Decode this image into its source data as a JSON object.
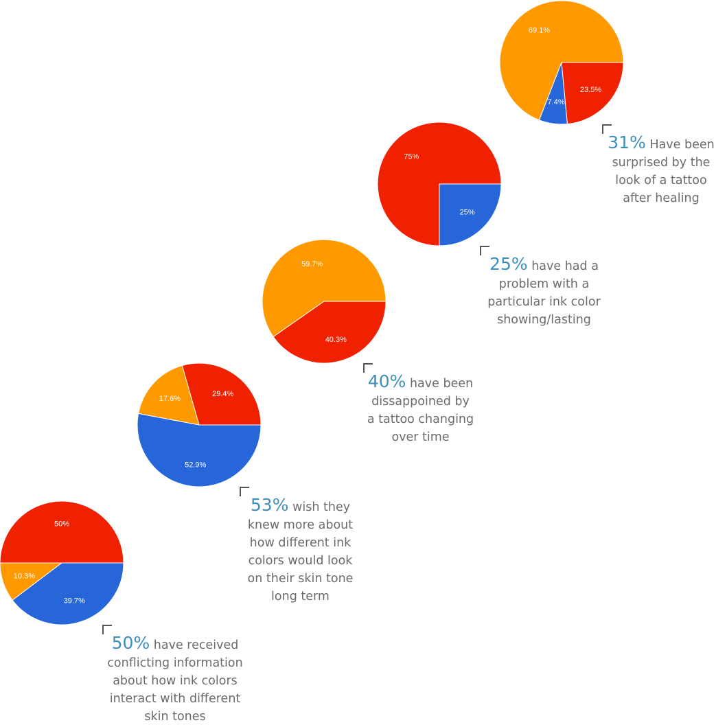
{
  "colors": {
    "orange": "#ff9900",
    "red": "#f02100",
    "blue": "#2666d9",
    "accent": "#3d8fbd",
    "text": "#6b6b6b"
  },
  "chart_data": [
    {
      "type": "pie",
      "slices": [
        {
          "label": "50%",
          "value": 50,
          "color": "#f02100"
        },
        {
          "label": "10.3%",
          "value": 10.3,
          "color": "#ff9900"
        },
        {
          "label": "39.7%",
          "value": 39.7,
          "color": "#2666d9"
        }
      ]
    },
    {
      "type": "pie",
      "slices": [
        {
          "label": "29.4%",
          "value": 29.4,
          "color": "#f02100"
        },
        {
          "label": "17.6%",
          "value": 17.6,
          "color": "#ff9900"
        },
        {
          "label": "52.9%",
          "value": 52.9,
          "color": "#2666d9"
        }
      ]
    },
    {
      "type": "pie",
      "slices": [
        {
          "label": "59.7%",
          "value": 59.7,
          "color": "#ff9900"
        },
        {
          "label": "40.3%",
          "value": 40.3,
          "color": "#f02100"
        }
      ]
    },
    {
      "type": "pie",
      "slices": [
        {
          "label": "75%",
          "value": 75,
          "color": "#f02100"
        },
        {
          "label": "25%",
          "value": 25,
          "color": "#2666d9"
        }
      ]
    },
    {
      "type": "pie",
      "slices": [
        {
          "label": "69.1%",
          "value": 69.1,
          "color": "#ff9900"
        },
        {
          "label": "7.4%",
          "value": 7.4,
          "color": "#2666d9"
        },
        {
          "label": "23.5%",
          "value": 23.5,
          "color": "#f02100"
        }
      ]
    }
  ],
  "captions": [
    {
      "pct": "50%",
      "first": " have received",
      "rest": [
        "conflicting information",
        "about how ink colors",
        "interact with different",
        "skin tones"
      ]
    },
    {
      "pct": "53%",
      "first": " wish they",
      "rest": [
        "knew more about",
        "how different ink",
        "colors would look",
        "on their skin tone",
        "long term"
      ]
    },
    {
      "pct": "40%",
      "first": " have been",
      "rest": [
        "dissappoined by",
        "a tattoo changing",
        "over time"
      ]
    },
    {
      "pct": "25%",
      "first": " have had a",
      "rest": [
        "problem with a",
        "particular ink color",
        "showing/lasting"
      ]
    },
    {
      "pct": "31%",
      "first": " Have been",
      "rest": [
        "surprised by the",
        "look of a tattoo",
        "after healing"
      ]
    }
  ]
}
